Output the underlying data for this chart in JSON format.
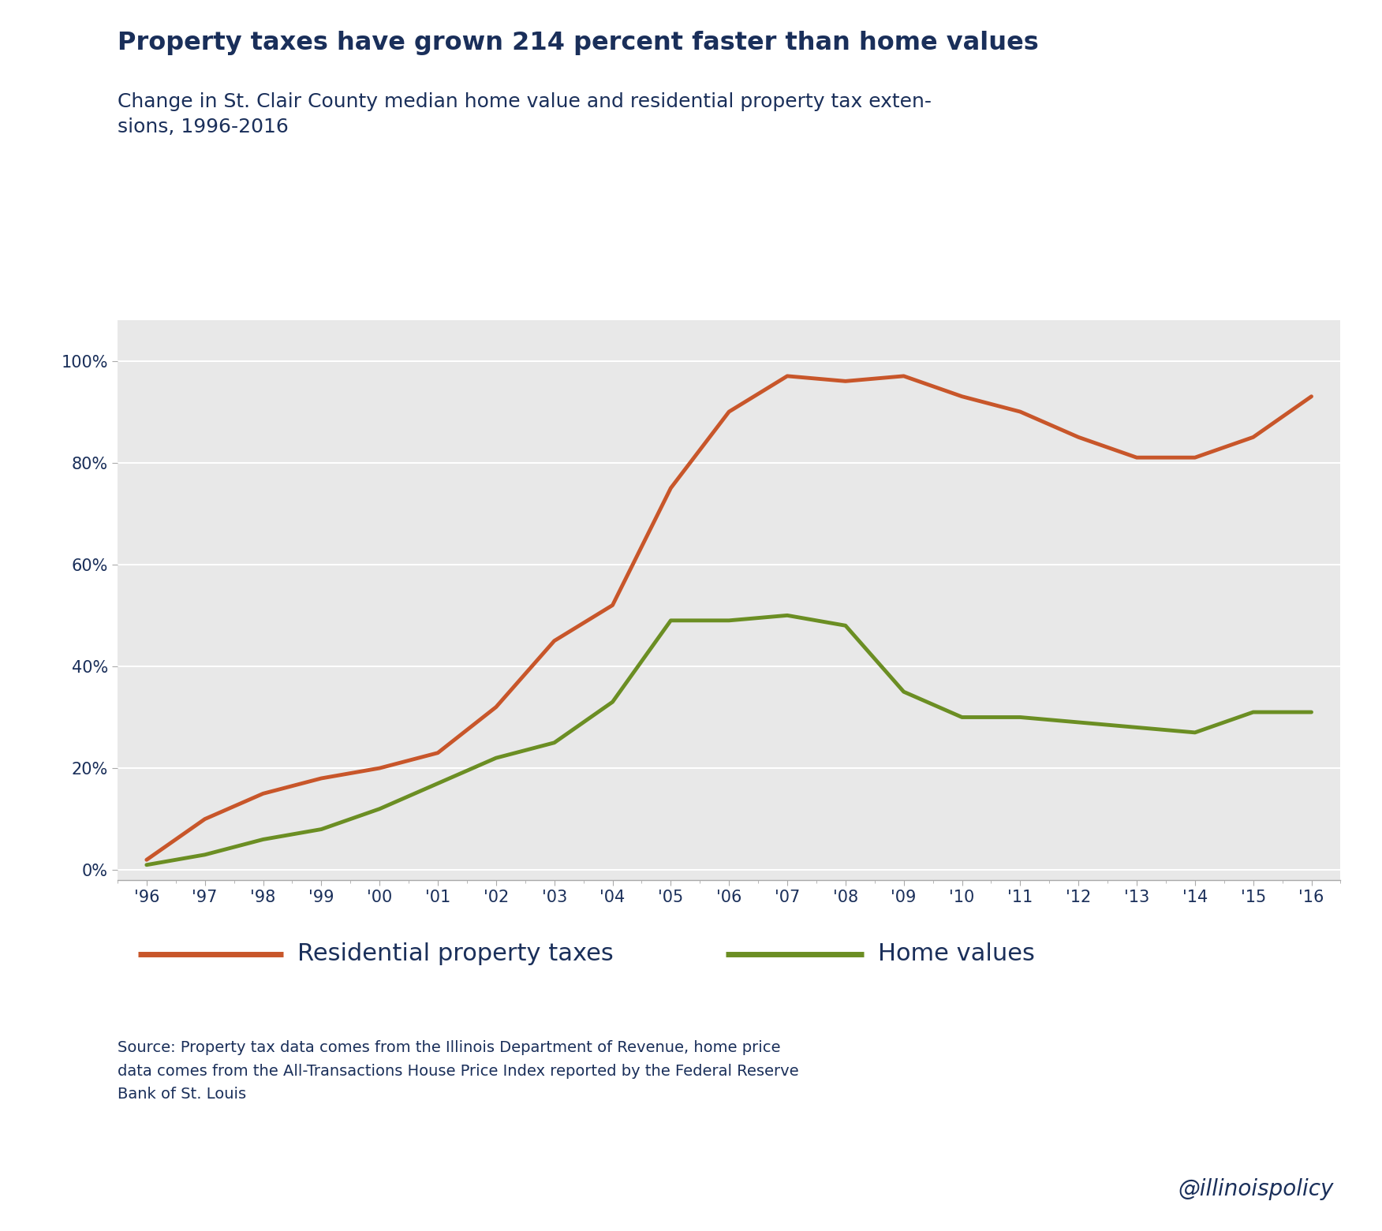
{
  "title": "Property taxes have grown 214 percent faster than home values",
  "subtitle": "Change in St. Clair County median home value and residential property tax exten-\nsions, 1996-2016",
  "title_color": "#1a2f5a",
  "subtitle_color": "#1a2f5a",
  "title_fontsize": 23,
  "subtitle_fontsize": 18,
  "years": [
    1996,
    1997,
    1998,
    1999,
    2000,
    2001,
    2002,
    2003,
    2004,
    2005,
    2006,
    2007,
    2008,
    2009,
    2010,
    2011,
    2012,
    2013,
    2014,
    2015,
    2016
  ],
  "property_taxes": [
    2,
    10,
    15,
    18,
    20,
    23,
    32,
    45,
    52,
    75,
    90,
    97,
    96,
    97,
    93,
    90,
    85,
    81,
    81,
    85,
    93
  ],
  "home_values": [
    1,
    3,
    6,
    8,
    12,
    17,
    22,
    25,
    33,
    49,
    49,
    50,
    48,
    35,
    30,
    30,
    29,
    28,
    27,
    31,
    31
  ],
  "tax_color": "#c8562a",
  "home_color": "#6b8e23",
  "background_color": "#ffffff",
  "plot_bg_color": "#e8e8e8",
  "grid_color": "#ffffff",
  "tick_label_color": "#1a2f5a",
  "tick_label_fontsize": 15,
  "ylabel_vals": [
    0,
    20,
    40,
    60,
    80,
    100
  ],
  "x_tick_labels": [
    "'96",
    "'97",
    "'98",
    "'99",
    "'00",
    "'01",
    "'02",
    "'03",
    "'04",
    "'05",
    "'06",
    "'07",
    "'08",
    "'09",
    "'10",
    "'11",
    "'12",
    "'13",
    "'14",
    "'15",
    "'16"
  ],
  "line_width": 3.5,
  "legend_tax_label": "Residential property taxes",
  "legend_home_label": "Home values",
  "legend_fontsize": 22,
  "source_text": "Source: Property tax data comes from the Illinois Department of Revenue, home price\ndata comes from the All-Transactions House Price Index reported by the Federal Reserve\nBank of St. Louis",
  "source_fontsize": 14,
  "watermark": "@illinoispolicy",
  "watermark_fontsize": 20
}
